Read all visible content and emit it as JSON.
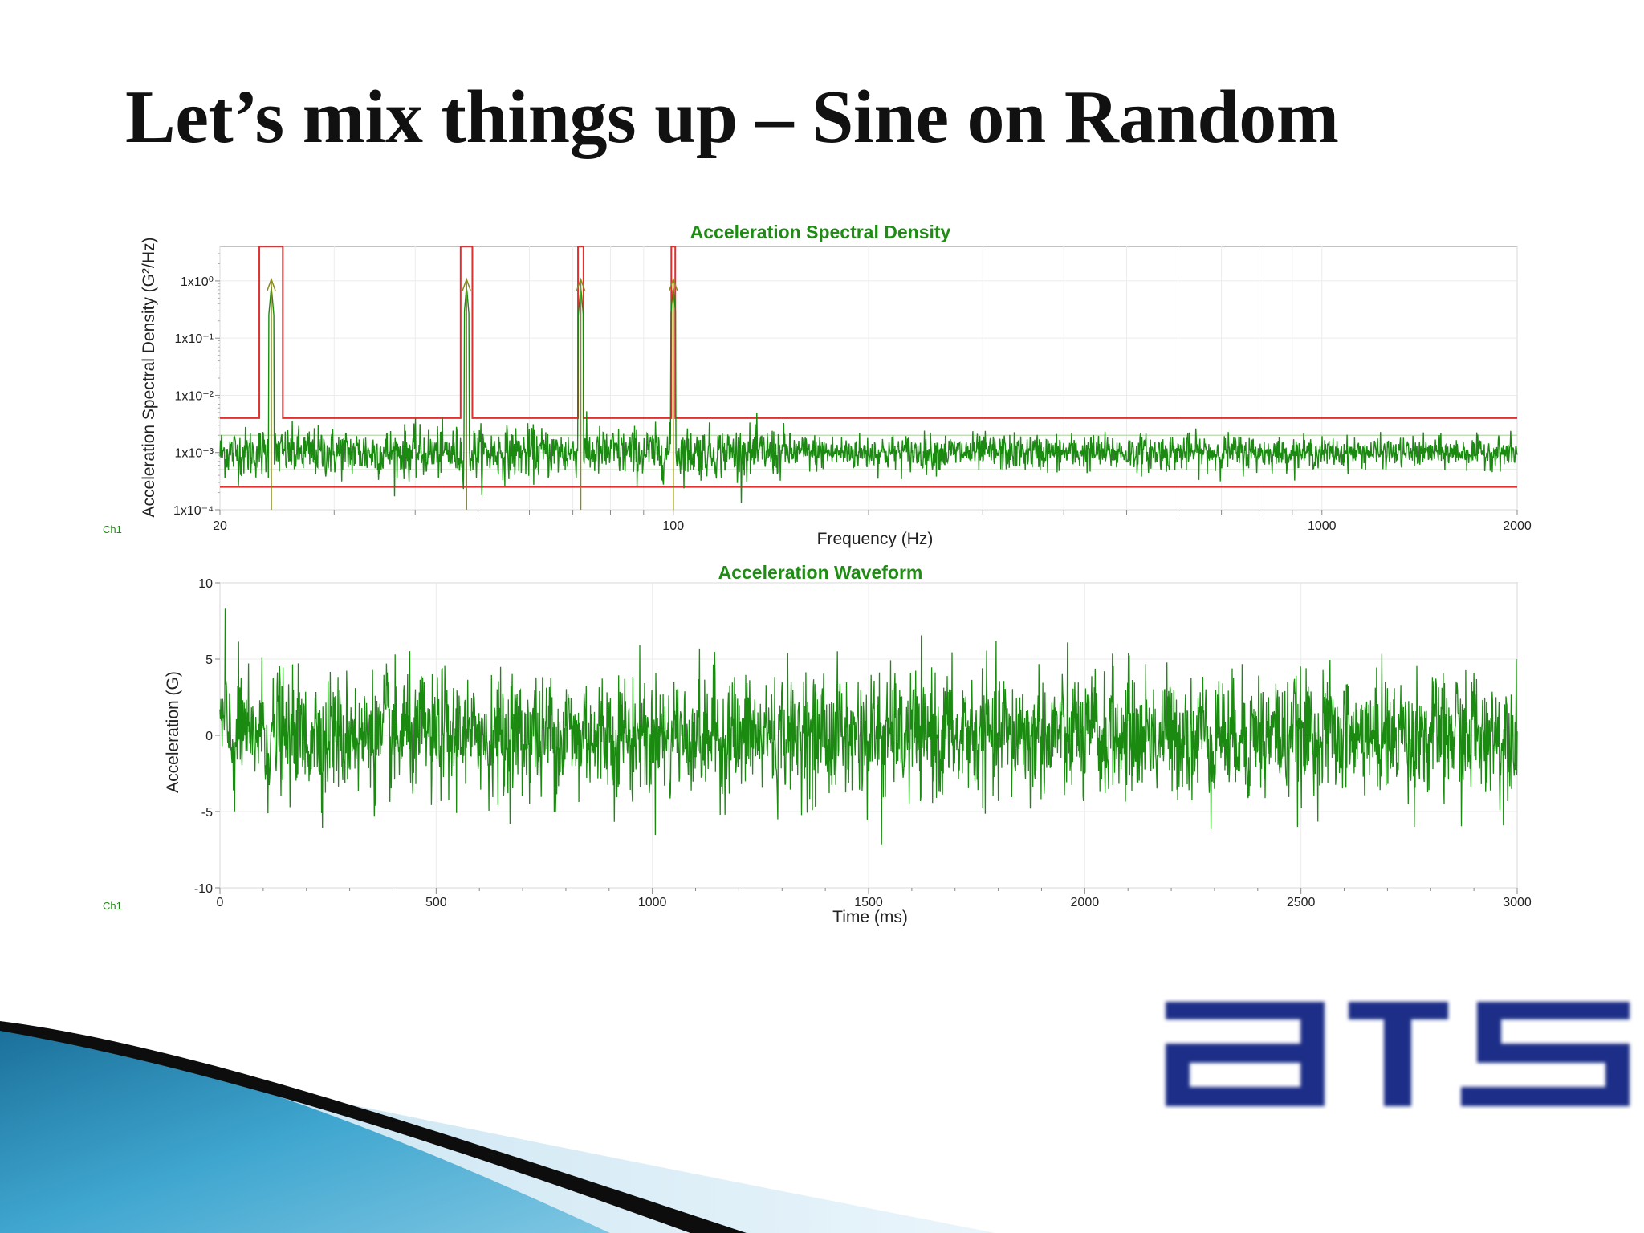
{
  "slide": {
    "title": "Let’s mix things up – Sine on Random"
  },
  "colors": {
    "trace": "#1a8a10",
    "abort_line": "#e03030",
    "chart_title": "#1f8c14",
    "logo": "#1c2f87"
  },
  "chart_data": [
    {
      "type": "line",
      "title": "Acceleration Spectral Density",
      "xlabel": "Frequency (Hz)",
      "ylabel": "Acceleration Spectral Density (G²/Hz)",
      "channel_label": "Ch1",
      "x_scale": "log",
      "y_scale": "log",
      "xlim": [
        20,
        2000
      ],
      "ylim": [
        0.0001,
        4
      ],
      "x_ticks": [
        {
          "value": 20,
          "label": "20"
        },
        {
          "value": 100,
          "label": "100"
        },
        {
          "value": 1000,
          "label": "1000"
        },
        {
          "value": 2000,
          "label": "2000"
        }
      ],
      "y_ticks": [
        {
          "value": 1,
          "label": "1x10⁰"
        },
        {
          "value": 0.1,
          "label": "1x10⁻¹"
        },
        {
          "value": 0.01,
          "label": "1x10⁻²"
        },
        {
          "value": 0.001,
          "label": "1x10⁻³"
        },
        {
          "value": 0.0001,
          "label": "1x10⁻⁴"
        }
      ],
      "grid": true,
      "random_profile_g2hz": 0.001,
      "abort_upper_g2hz": 0.004,
      "abort_lower_g2hz": 0.00025,
      "sine_tones": [
        {
          "freq_hz": 24,
          "band_hz": [
            23,
            25
          ],
          "level_g2hz": 1.0
        },
        {
          "freq_hz": 48,
          "band_hz": [
            47,
            49
          ],
          "level_g2hz": 1.0
        },
        {
          "freq_hz": 72,
          "band_hz": [
            71.3,
            72.7
          ],
          "level_g2hz": 1.0
        },
        {
          "freq_hz": 100,
          "band_hz": [
            99.3,
            100.7
          ],
          "level_g2hz": 1.0
        }
      ],
      "control_trace": {
        "description": "random noise around ~1x10⁻³ G²/Hz with spikes at sine tones",
        "mean_g2hz": 0.001,
        "range_g2hz": [
          0.0003,
          0.003
        ]
      }
    },
    {
      "type": "line",
      "title": "Acceleration Waveform",
      "xlabel": "Time (ms)",
      "ylabel": "Acceleration (G)",
      "channel_label": "Ch1",
      "xlim": [
        0,
        3000
      ],
      "ylim": [
        -10,
        10
      ],
      "x_ticks": [
        {
          "value": 0,
          "label": "0"
        },
        {
          "value": 500,
          "label": "500"
        },
        {
          "value": 1000,
          "label": "1000"
        },
        {
          "value": 1500,
          "label": "1500"
        },
        {
          "value": 2000,
          "label": "2000"
        },
        {
          "value": 2500,
          "label": "2500"
        },
        {
          "value": 3000,
          "label": "3000"
        }
      ],
      "y_ticks": [
        {
          "value": 10,
          "label": "10"
        },
        {
          "value": 5,
          "label": "5"
        },
        {
          "value": 0,
          "label": "0"
        },
        {
          "value": -5,
          "label": "-5"
        },
        {
          "value": -10,
          "label": "-10"
        }
      ],
      "grid": true,
      "waveform": {
        "description": "random acceleration signal",
        "peak_max_g": 8.3,
        "peak_min_g": -7.2,
        "typical_range_g": [
          -5,
          5
        ]
      }
    }
  ]
}
